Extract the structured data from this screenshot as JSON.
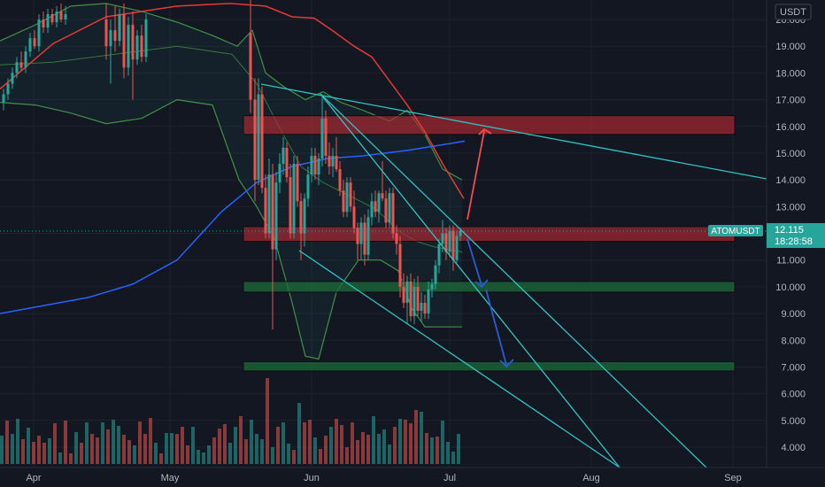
{
  "chart_data": {
    "type": "candlestick",
    "symbol": "ATOMUSDT",
    "currency": "USDT",
    "last_price": "12.115",
    "countdown": "18:28:58",
    "y_ticks": [
      "20.000",
      "19.000",
      "18.000",
      "17.000",
      "16.000",
      "15.000",
      "14.000",
      "13.000",
      "12.000",
      "11.000",
      "10.000",
      "9.000",
      "8.000",
      "7.000",
      "6.000",
      "5.000",
      "4.000"
    ],
    "x_ticks": [
      "Apr",
      "May",
      "Jun",
      "Jul",
      "Aug",
      "Sep"
    ],
    "ylim": [
      3.6,
      20.5
    ],
    "zones": [
      {
        "kind": "resistance",
        "from": 15.7,
        "to": 16.4,
        "color": "#b22833"
      },
      {
        "kind": "resistance",
        "from": 11.7,
        "to": 12.25,
        "color": "#b22833"
      },
      {
        "kind": "support",
        "from": 9.8,
        "to": 10.2,
        "color": "#1e6b3a"
      },
      {
        "kind": "support",
        "from": 6.85,
        "to": 7.2,
        "color": "#1e6b3a"
      }
    ],
    "colors": {
      "up": "#26a69a",
      "down": "#ef5350",
      "trendline": "#2ec4c4",
      "ma_slow": "#2962ff",
      "ma_fast": "#e53935",
      "bollinger": "#4caf50",
      "arrow_up": "#f05050",
      "arrow_down": "#2a5bd7",
      "last_price_tag": "#26a69a"
    }
  }
}
